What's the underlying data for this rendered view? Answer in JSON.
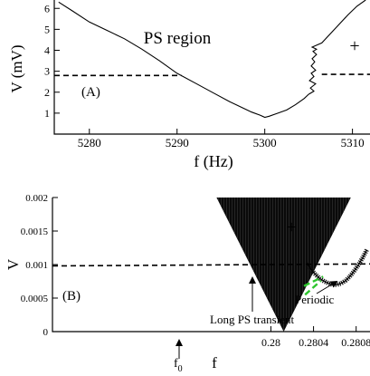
{
  "chart_data": [
    {
      "panel": "(A)",
      "type": "line",
      "xlabel": "f (Hz)",
      "ylabel": "V (mV)",
      "xlim": [
        5276,
        5312
      ],
      "ylim": [
        0,
        6.4
      ],
      "x_ticks": [
        5280,
        5290,
        5300,
        5310
      ],
      "y_ticks": [
        1,
        2,
        3,
        4,
        5,
        6
      ],
      "grid": false,
      "annotations": [
        "PS region",
        "+"
      ],
      "series": [
        {
          "role": "boundary-left",
          "x": [
            5276.5,
            5278,
            5280,
            5282,
            5284,
            5286,
            5288,
            5290,
            5292,
            5294,
            5296,
            5297.5,
            5298.5,
            5299.5,
            5300,
            5300.5,
            5301.5,
            5302.5,
            5303.5,
            5304.5,
            5305
          ],
          "y": [
            6.3,
            5.9,
            5.35,
            4.95,
            4.55,
            4.05,
            3.5,
            2.9,
            2.45,
            2.0,
            1.55,
            1.25,
            1.05,
            0.9,
            0.8,
            0.85,
            1.0,
            1.15,
            1.4,
            1.7,
            1.9
          ]
        },
        {
          "role": "boundary-right",
          "x": [
            5305,
            5305.6,
            5305.2,
            5305.8,
            5305.1,
            5305.6,
            5305.3,
            5305.8,
            5305.3,
            5305.7,
            5305.4,
            5305.9,
            5305.5,
            5305.9,
            5305.4,
            5306.5,
            5307.5,
            5308.5,
            5309.5,
            5310.5,
            5311.5
          ],
          "y": [
            1.9,
            2.05,
            2.2,
            2.4,
            2.55,
            2.75,
            2.9,
            3.05,
            3.25,
            3.45,
            3.6,
            3.8,
            3.95,
            4.05,
            4.15,
            4.35,
            4.8,
            5.25,
            5.7,
            6.1,
            6.4
          ]
        },
        {
          "role": "threshold",
          "style": "dashed",
          "x": [
            5276,
            5290.5
          ],
          "y": [
            2.8,
            2.8
          ]
        },
        {
          "role": "threshold",
          "style": "dashed",
          "x": [
            5306.5,
            5312
          ],
          "y": [
            2.85,
            2.85
          ]
        }
      ]
    },
    {
      "panel": "(B)",
      "type": "area",
      "xlabel": "f",
      "ylabel": "V",
      "xlim": [
        0.27795,
        0.28093
      ],
      "ylim": [
        0,
        0.002
      ],
      "x_ticks": [
        0.28,
        0.2804,
        0.2808
      ],
      "x_tick_labels": [
        "0.28",
        "0.2804",
        "0.2808"
      ],
      "y_ticks": [
        0,
        0.0005,
        0.001,
        0.0015,
        0.002
      ],
      "y_tick_labels": [
        "0",
        "0.0005",
        "0.001",
        "0.0015",
        "0.002"
      ],
      "grid": false,
      "annotations": [
        "+",
        "Periodic",
        "Long PS transient",
        "f",
        "0"
      ],
      "region": {
        "style": "black-fill",
        "apex": [
          0.28012,
          0.0
        ],
        "top_left_x": 0.27949,
        "top_right_x": 0.28075,
        "top_y": 0.002
      },
      "series": [
        {
          "role": "periodic-branch",
          "x": [
            0.28034,
            0.28038,
            0.28042,
            0.28046,
            0.2805,
            0.28054,
            0.28058,
            0.28062,
            0.28066,
            0.2807,
            0.28074,
            0.28078,
            0.28082,
            0.28086,
            0.2809
          ],
          "y": [
            0.00102,
            0.00092,
            0.00085,
            0.00079,
            0.00075,
            0.00072,
            0.0007,
            0.0007,
            0.00072,
            0.00076,
            0.00082,
            0.0009,
            0.00099,
            0.0011,
            0.00122
          ]
        },
        {
          "role": "threshold",
          "style": "dashed",
          "x": [
            0.27795,
            0.28093
          ],
          "y": [
            0.00098,
            0.00101
          ]
        },
        {
          "role": "transient-guide",
          "style": "dashed-green",
          "x": [
            0.28031,
            0.28049
          ],
          "y": [
            0.00068,
            0.00082
          ]
        },
        {
          "role": "transient-guide",
          "style": "dashed-green",
          "x": [
            0.28032,
            0.28047
          ],
          "y": [
            0.00055,
            0.00076
          ]
        }
      ]
    }
  ]
}
